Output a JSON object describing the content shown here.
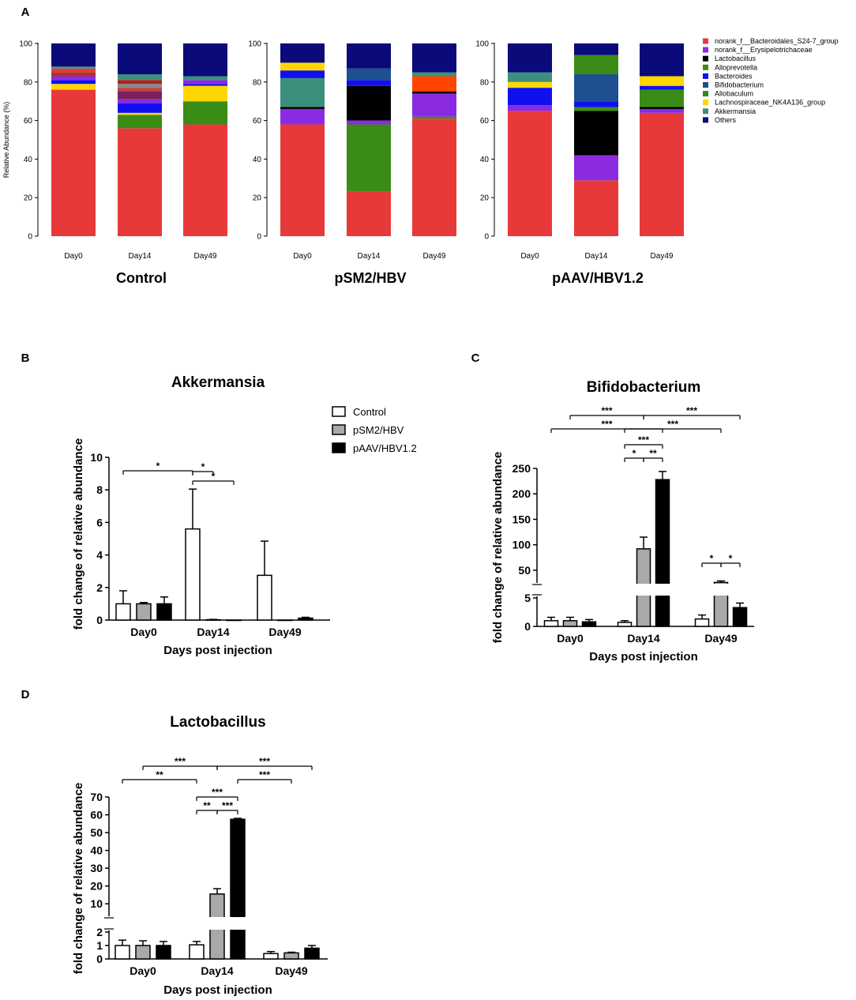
{
  "chart_data": [
    {
      "panel": "A",
      "type": "bar",
      "stacked": true,
      "ylabel": "Relative Abundance (%)",
      "ylim": [
        0,
        100
      ],
      "yticks": [
        0,
        20,
        40,
        60,
        80,
        100
      ],
      "legend_position": "right",
      "series": [
        {
          "name": "norank_f__Bacteroidales_S24-7_group",
          "color": "#e8393a"
        },
        {
          "name": "norank_f__Erysipelotrichaceae",
          "color": "#8a2be2"
        },
        {
          "name": "Lactobacillus",
          "color": "#000000"
        },
        {
          "name": "Alloprevotella",
          "color": "#3b8c16"
        },
        {
          "name": "Bacteroides",
          "color": "#1010ee"
        },
        {
          "name": "Bifidobacterium",
          "color": "#1d4f91"
        },
        {
          "name": "Allobaculum",
          "color": "#2e8b1e"
        },
        {
          "name": "Lachnospiraceae_NK4A136_group",
          "color": "#ffd700"
        },
        {
          "name": "Akkermansia",
          "color": "#3c8f7c"
        },
        {
          "name": "Others",
          "color": "#0a0a7a"
        }
      ],
      "groups": [
        {
          "title": "Control",
          "categories": [
            "Day0",
            "Day14",
            "Day49"
          ],
          "stacks": [
            [
              {
                "color": "#e8393a",
                "value": 76
              },
              {
                "color": "#ffd700",
                "value": 3
              },
              {
                "color": "#1010ee",
                "value": 2
              },
              {
                "color": "#8a2be2",
                "value": 2
              },
              {
                "color": "#b03030",
                "value": 2
              },
              {
                "color": "#e8393a",
                "value": 2
              },
              {
                "color": "#3c8f7c",
                "value": 1
              },
              {
                "color": "#0a0a7a",
                "value": 12
              }
            ],
            [
              {
                "color": "#e8393a",
                "value": 56
              },
              {
                "color": "#3b8c16",
                "value": 7
              },
              {
                "color": "#ffd700",
                "value": 1
              },
              {
                "color": "#1010ee",
                "value": 5
              },
              {
                "color": "#8a2be2",
                "value": 2
              },
              {
                "color": "#7a2060",
                "value": 4
              },
              {
                "color": "#c04040",
                "value": 2
              },
              {
                "color": "#888888",
                "value": 2
              },
              {
                "color": "#b02020",
                "value": 2
              },
              {
                "color": "#3c8f7c",
                "value": 3
              },
              {
                "color": "#0a0a7a",
                "value": 16
              }
            ],
            [
              {
                "color": "#e8393a",
                "value": 58
              },
              {
                "color": "#3b8c16",
                "value": 12
              },
              {
                "color": "#ffd700",
                "value": 8
              },
              {
                "color": "#1010ee",
                "value": 1
              },
              {
                "color": "#8a2be2",
                "value": 2
              },
              {
                "color": "#3c8f7c",
                "value": 2
              },
              {
                "color": "#0a0a7a",
                "value": 17
              }
            ]
          ]
        },
        {
          "title": "pSM2/HBV",
          "categories": [
            "Day0",
            "Day14",
            "Day49"
          ],
          "stacks": [
            [
              {
                "color": "#e8393a",
                "value": 58
              },
              {
                "color": "#8a2be2",
                "value": 8
              },
              {
                "color": "#000000",
                "value": 1
              },
              {
                "color": "#3c8f7c",
                "value": 15
              },
              {
                "color": "#1010ee",
                "value": 4
              },
              {
                "color": "#ffd700",
                "value": 4
              },
              {
                "color": "#0a0a7a",
                "value": 10
              }
            ],
            [
              {
                "color": "#e8393a",
                "value": 23
              },
              {
                "color": "#3b8c16",
                "value": 35
              },
              {
                "color": "#8a2be2",
                "value": 2
              },
              {
                "color": "#000000",
                "value": 18
              },
              {
                "color": "#1010ee",
                "value": 3
              },
              {
                "color": "#1d4f91",
                "value": 6
              },
              {
                "color": "#0a0a7a",
                "value": 13
              }
            ],
            [
              {
                "color": "#e8393a",
                "value": 61
              },
              {
                "color": "#3b8c16",
                "value": 1
              },
              {
                "color": "#8a2be2",
                "value": 12
              },
              {
                "color": "#000000",
                "value": 1
              },
              {
                "color": "#ff4500",
                "value": 8
              },
              {
                "color": "#3c8f7c",
                "value": 2
              },
              {
                "color": "#0a0a7a",
                "value": 15
              }
            ]
          ]
        },
        {
          "title": "pAAV/HBV1.2",
          "categories": [
            "Day0",
            "Day14",
            "Day49"
          ],
          "stacks": [
            [
              {
                "color": "#e8393a",
                "value": 65
              },
              {
                "color": "#8a2be2",
                "value": 3
              },
              {
                "color": "#1010ee",
                "value": 9
              },
              {
                "color": "#ffd700",
                "value": 3
              },
              {
                "color": "#3c8f7c",
                "value": 5
              },
              {
                "color": "#0a0a7a",
                "value": 15
              }
            ],
            [
              {
                "color": "#e8393a",
                "value": 29
              },
              {
                "color": "#8a2be2",
                "value": 13
              },
              {
                "color": "#000000",
                "value": 23
              },
              {
                "color": "#3b8c16",
                "value": 2
              },
              {
                "color": "#1010ee",
                "value": 3
              },
              {
                "color": "#1d4f91",
                "value": 14
              },
              {
                "color": "#3b8c16",
                "value": 10
              },
              {
                "color": "#0a0a7a",
                "value": 6
              }
            ],
            [
              {
                "color": "#e8393a",
                "value": 64
              },
              {
                "color": "#8a2be2",
                "value": 2
              },
              {
                "color": "#000000",
                "value": 1
              },
              {
                "color": "#3b8c16",
                "value": 9
              },
              {
                "color": "#1010ee",
                "value": 2
              },
              {
                "color": "#ffd700",
                "value": 5
              },
              {
                "color": "#0a0a7a",
                "value": 17
              }
            ]
          ]
        }
      ]
    },
    {
      "panel": "B",
      "type": "bar",
      "title": "Akkermansia",
      "xlabel": "Days post injection",
      "ylabel": "fold change of relative abundance",
      "ylim": [
        0,
        10
      ],
      "yticks": [
        0,
        2,
        4,
        6,
        8,
        10
      ],
      "categories": [
        "Day0",
        "Day14",
        "Day49"
      ],
      "series": [
        {
          "name": "Control",
          "color": "#ffffff",
          "values": [
            1.0,
            5.6,
            2.75
          ],
          "errors": [
            0.8,
            2.45,
            2.1
          ]
        },
        {
          "name": "pSM2/HBV",
          "color": "#a9a9a9",
          "values": [
            1.0,
            0.02,
            0.0
          ],
          "errors": [
            0.08,
            0.02,
            0.0
          ]
        },
        {
          "name": "pAAV/HBV1.2",
          "color": "#000000",
          "values": [
            1.0,
            0.0,
            0.12
          ],
          "errors": [
            0.42,
            0.0,
            0.05
          ]
        }
      ],
      "legend_position": "top-right",
      "significance": [
        {
          "from": [
            0,
            0
          ],
          "to": [
            1,
            0
          ],
          "label": "*"
        },
        {
          "from": [
            1,
            0
          ],
          "to": [
            1,
            1
          ],
          "label": "*"
        },
        {
          "from": [
            1,
            0
          ],
          "to": [
            1,
            2
          ],
          "label": "*"
        }
      ]
    },
    {
      "panel": "C",
      "type": "bar",
      "title": "Bifidobacterium",
      "xlabel": "Days post injection",
      "ylabel": "fold change of relative abundance",
      "axis_break": true,
      "lower_ylim": [
        0,
        5
      ],
      "lower_yticks": [
        0,
        5
      ],
      "upper_ylim": [
        25,
        250
      ],
      "upper_yticks": [
        50,
        100,
        150,
        200,
        250
      ],
      "categories": [
        "Day0",
        "Day14",
        "Day49"
      ],
      "series": [
        {
          "name": "Control",
          "color": "#ffffff",
          "values": [
            1.0,
            0.7,
            1.3
          ],
          "errors": [
            0.6,
            0.3,
            0.7
          ]
        },
        {
          "name": "pSM2/HBV",
          "color": "#a9a9a9",
          "values": [
            1.0,
            92,
            26
          ],
          "errors": [
            0.6,
            23,
            3
          ]
        },
        {
          "name": "pAAV/HBV1.2",
          "color": "#000000",
          "values": [
            0.8,
            228,
            3.3
          ],
          "errors": [
            0.4,
            16,
            0.8
          ]
        }
      ],
      "significance": [
        {
          "from": [
            0,
            1
          ],
          "to": [
            1,
            1
          ],
          "label": "***"
        },
        {
          "from": [
            1,
            1
          ],
          "to": [
            2,
            2
          ],
          "label": "***"
        },
        {
          "from": [
            0,
            0
          ],
          "to": [
            1,
            2
          ],
          "label": "***"
        },
        {
          "from": [
            1,
            0
          ],
          "to": [
            2,
            1
          ],
          "label": "***"
        },
        {
          "from": [
            1,
            0
          ],
          "to": [
            1,
            2
          ],
          "label": "***"
        },
        {
          "from": [
            1,
            0
          ],
          "to": [
            1,
            1
          ],
          "label": "*"
        },
        {
          "from": [
            1,
            1
          ],
          "to": [
            1,
            2
          ],
          "label": "**"
        },
        {
          "from": [
            2,
            0
          ],
          "to": [
            2,
            1
          ],
          "label": "*"
        },
        {
          "from": [
            2,
            1
          ],
          "to": [
            2,
            2
          ],
          "label": "*"
        }
      ]
    },
    {
      "panel": "D",
      "type": "bar",
      "title": "Lactobacillus",
      "xlabel": "Days post injection",
      "ylabel": "fold change of relative abundance",
      "axis_break": true,
      "lower_ylim": [
        0,
        2
      ],
      "lower_yticks": [
        0,
        1,
        2
      ],
      "upper_ylim": [
        3,
        70
      ],
      "upper_yticks": [
        10,
        20,
        30,
        40,
        50,
        60,
        70
      ],
      "categories": [
        "Day0",
        "Day14",
        "Day49"
      ],
      "series": [
        {
          "name": "Control",
          "color": "#ffffff",
          "values": [
            1.0,
            1.05,
            0.4
          ],
          "errors": [
            0.4,
            0.25,
            0.15
          ]
        },
        {
          "name": "pSM2/HBV",
          "color": "#a9a9a9",
          "values": [
            1.0,
            15.5,
            0.45
          ],
          "errors": [
            0.35,
            3,
            0.05
          ]
        },
        {
          "name": "pAAV/HBV1.2",
          "color": "#000000",
          "values": [
            1.0,
            57.5,
            0.8
          ],
          "errors": [
            0.3,
            0.5,
            0.2
          ]
        }
      ],
      "significance": [
        {
          "from": [
            0,
            1
          ],
          "to": [
            1,
            1
          ],
          "label": "***"
        },
        {
          "from": [
            1,
            1
          ],
          "to": [
            2,
            2
          ],
          "label": "***"
        },
        {
          "from": [
            0,
            0
          ],
          "to": [
            1,
            0
          ],
          "label": "**"
        },
        {
          "from": [
            1,
            2
          ],
          "to": [
            2,
            1
          ],
          "label": "***"
        },
        {
          "from": [
            1,
            0
          ],
          "to": [
            1,
            2
          ],
          "label": "***"
        },
        {
          "from": [
            1,
            0
          ],
          "to": [
            1,
            1
          ],
          "label": "**"
        },
        {
          "from": [
            1,
            1
          ],
          "to": [
            1,
            2
          ],
          "label": "***"
        }
      ]
    }
  ]
}
